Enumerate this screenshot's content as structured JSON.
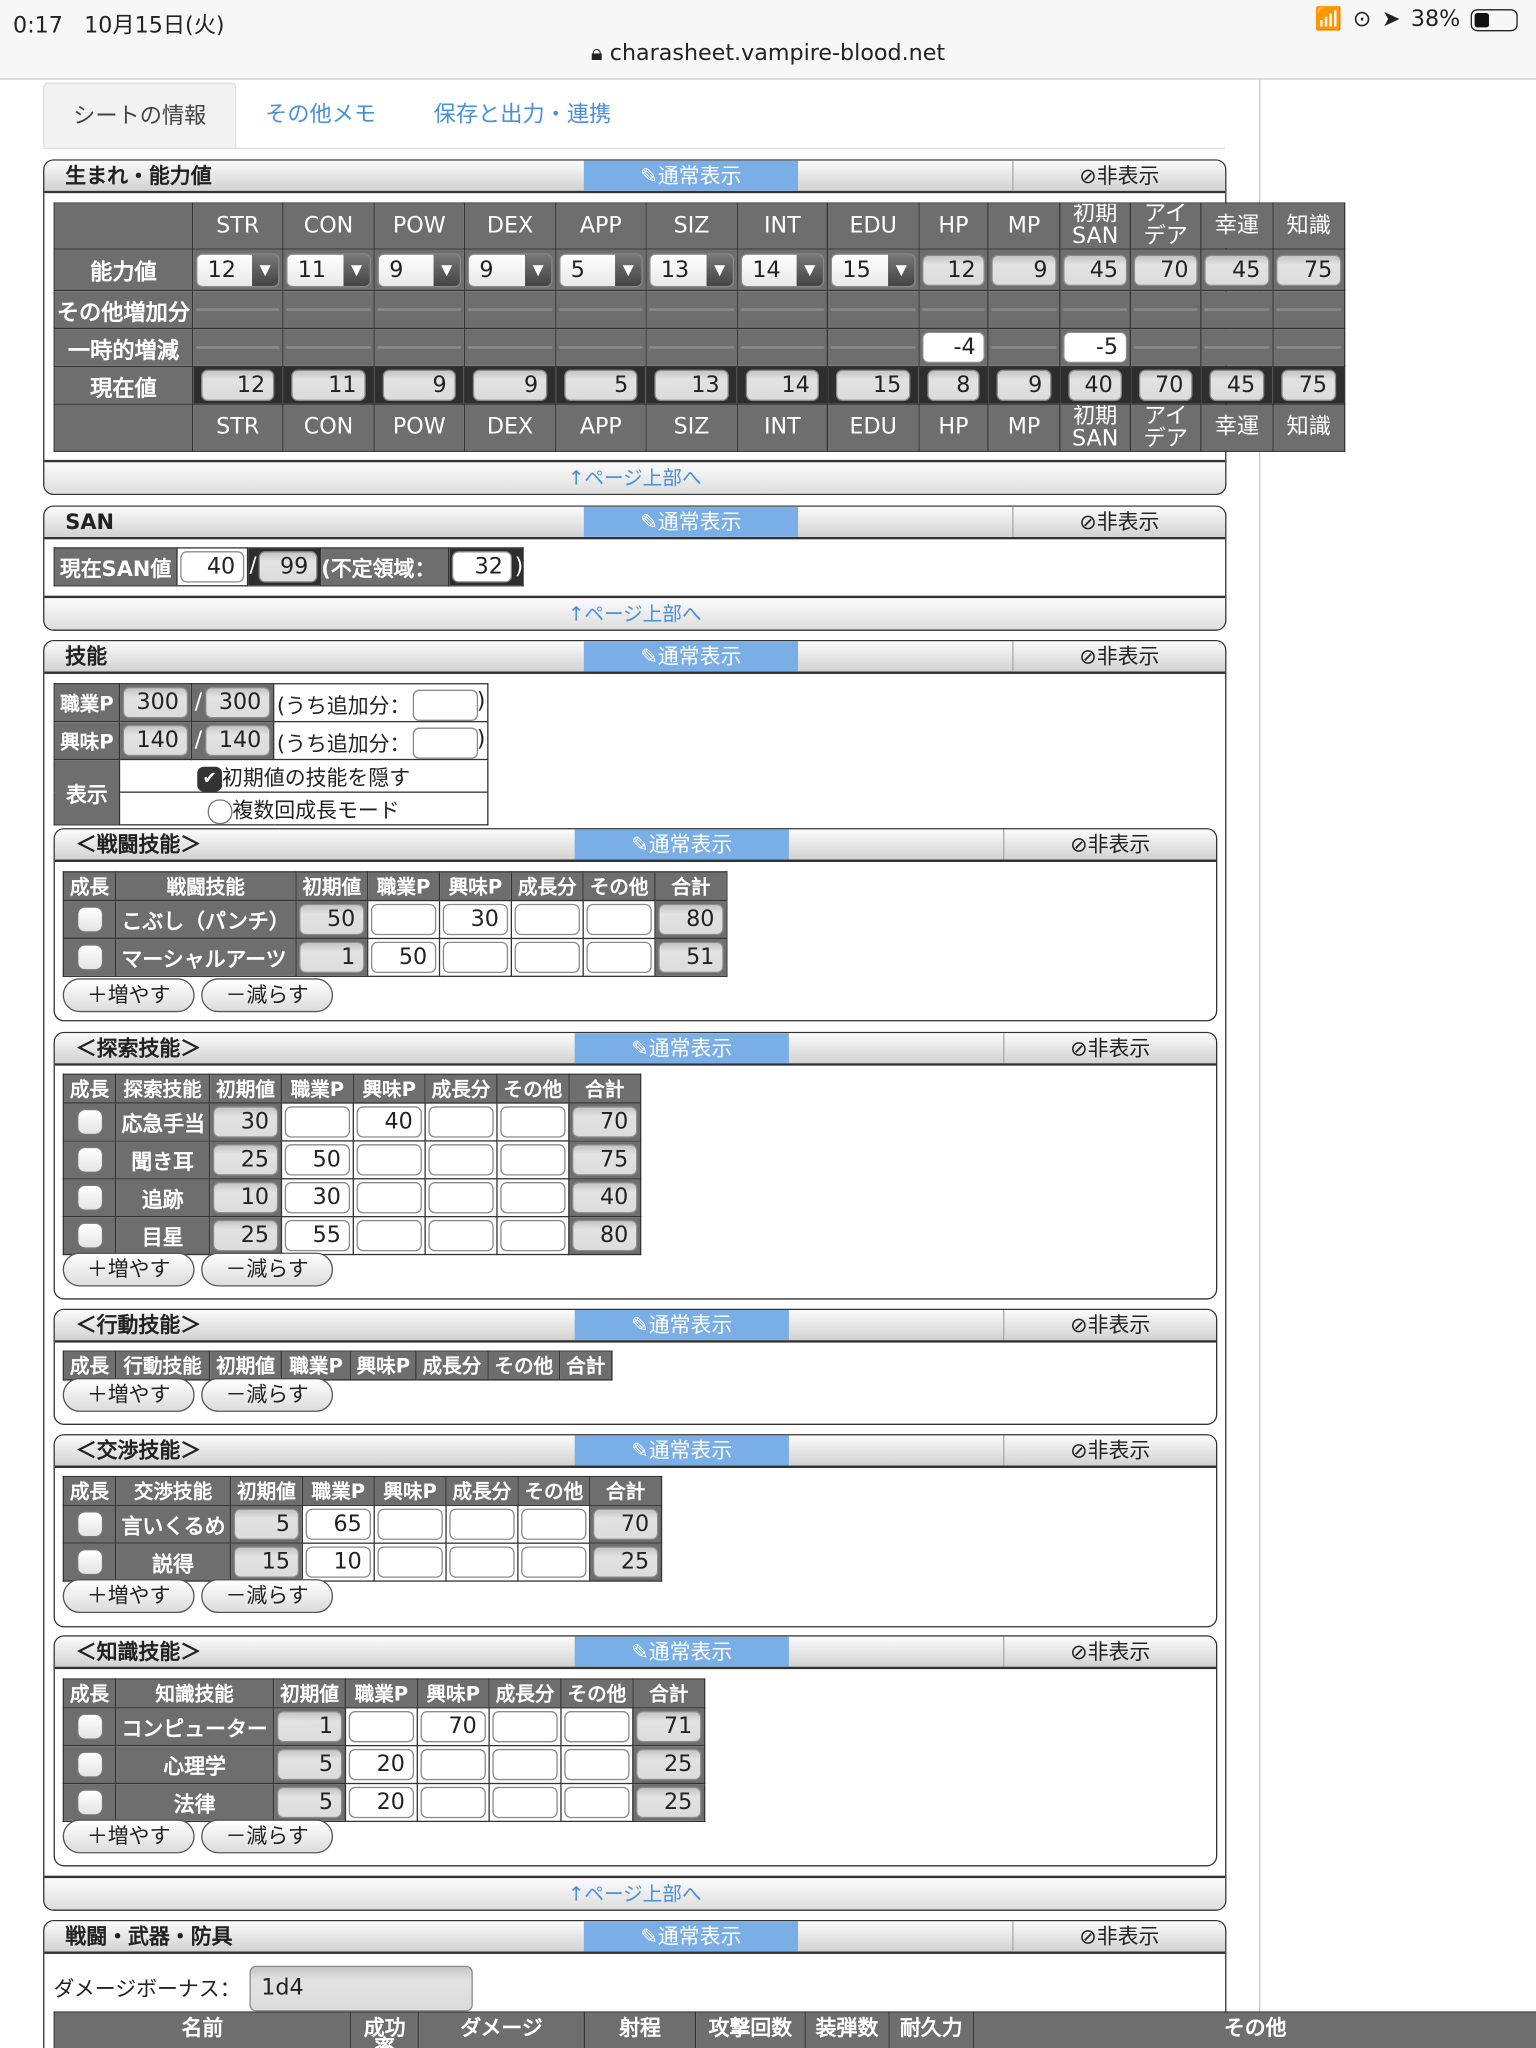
{
  "status_bar": {
    "time": "0:17",
    "date": "10月15日(火)",
    "battery": "38%",
    "battery_level": 0.38,
    "url": "charasheet.vampire-blood.net"
  },
  "tabs": [
    {
      "label": "シートの情報",
      "active": true
    },
    {
      "label": "その他メモ"
    },
    {
      "label": "保存と出力・連携"
    }
  ],
  "common": {
    "normal_view": "✎通常表示",
    "hide": "⊘非表示",
    "page_top": "↑ページ上部へ",
    "add": "＋増やす",
    "remove": "－減らす",
    "link_color": "#4a90d9",
    "accent": "#7aaee6"
  },
  "abilities": {
    "title": "生まれ・能力値",
    "columns": [
      "STR",
      "CON",
      "POW",
      "DEX",
      "APP",
      "SIZ",
      "INT",
      "EDU",
      "HP",
      "MP",
      "初期\nSAN",
      "アイ\nデア",
      "幸運",
      "知識"
    ],
    "row_labels": [
      "能力値",
      "その他増加分",
      "一時的増減",
      "現在値"
    ],
    "base": [
      "12",
      "11",
      "9",
      "9",
      "5",
      "13",
      "14",
      "15",
      "12",
      "9",
      "45",
      "70",
      "45",
      "75"
    ],
    "other": [
      "",
      "",
      "",
      "",
      "",
      "",
      "",
      "",
      "",
      "",
      "",
      "",
      "",
      ""
    ],
    "temp": [
      "",
      "",
      "",
      "",
      "",
      "",
      "",
      "",
      "-4",
      "",
      "-5",
      "",
      "",
      ""
    ],
    "current": [
      "12",
      "11",
      "9",
      "9",
      "5",
      "13",
      "14",
      "15",
      "8",
      "9",
      "40",
      "70",
      "45",
      "75"
    ]
  },
  "san": {
    "title": "SAN",
    "label": "現在SAN値",
    "current": "40",
    "slash": "/",
    "max": "99",
    "indef_label": "(不定領域：",
    "indef": "32",
    "close": ")"
  },
  "skills": {
    "title": "技能",
    "job_label": "職業P",
    "job": "300",
    "job_max": "300",
    "hobby_label": "興味P",
    "hobby": "140",
    "hobby_max": "140",
    "extra_label": "(うち追加分：",
    "close": ")",
    "slash": "/",
    "display_label": "表示",
    "hide_initial": "初期値の技能を隠す",
    "hide_initial_checked": true,
    "multi_growth": "複数回成長モード",
    "multi_growth_checked": false,
    "headers": [
      "成長",
      "",
      "初期値",
      "職業P",
      "興味P",
      "成長分",
      "その他",
      "合計"
    ],
    "groups": [
      {
        "title": "＜戦闘技能＞",
        "col": "戦闘技能",
        "items": [
          [
            "こぶし（パンチ）",
            "50",
            "",
            "30",
            "",
            "",
            "80"
          ],
          [
            "マーシャルアーツ",
            "1",
            "50",
            "",
            "",
            "",
            "51"
          ]
        ]
      },
      {
        "title": "＜探索技能＞",
        "col": "探索技能",
        "items": [
          [
            "応急手当",
            "30",
            "",
            "40",
            "",
            "",
            "70"
          ],
          [
            "聞き耳",
            "25",
            "50",
            "",
            "",
            "",
            "75"
          ],
          [
            "追跡",
            "10",
            "30",
            "",
            "",
            "",
            "40"
          ],
          [
            "目星",
            "25",
            "55",
            "",
            "",
            "",
            "80"
          ]
        ]
      },
      {
        "title": "＜行動技能＞",
        "col": "行動技能",
        "items": []
      },
      {
        "title": "＜交渉技能＞",
        "col": "交渉技能",
        "items": [
          [
            "言いくるめ",
            "5",
            "65",
            "",
            "",
            "",
            "70"
          ],
          [
            "説得",
            "15",
            "10",
            "",
            "",
            "",
            "25"
          ]
        ]
      },
      {
        "title": "＜知識技能＞",
        "col": "知識技能",
        "items": [
          [
            "コンピューター",
            "1",
            "",
            "70",
            "",
            "",
            "71"
          ],
          [
            "心理学",
            "5",
            "20",
            "",
            "",
            "",
            "25"
          ],
          [
            "法律",
            "5",
            "20",
            "",
            "",
            "",
            "25"
          ]
        ]
      }
    ]
  },
  "combat": {
    "title": "戦闘・武器・防具",
    "damage_bonus_label": "ダメージボーナス：",
    "damage_bonus": "1d4",
    "columns": [
      "名前",
      "成功\n率",
      "ダメージ",
      "射程",
      "攻撃回数",
      "装弾数",
      "耐久力",
      "その他"
    ]
  }
}
